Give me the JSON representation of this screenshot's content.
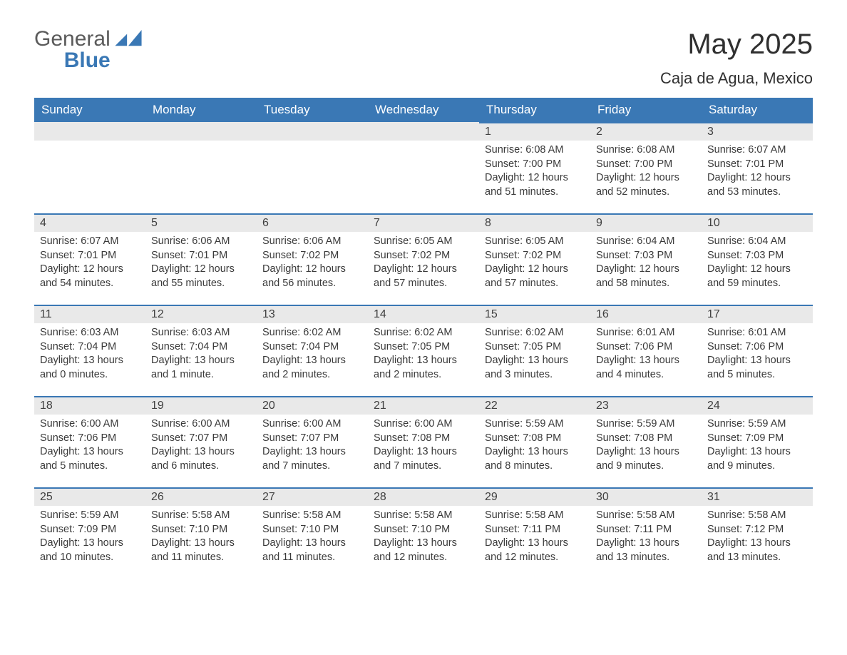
{
  "brand": {
    "name_part1": "General",
    "name_part2": "Blue",
    "text_color": "#5b5b5b",
    "accent_color": "#3a78b5"
  },
  "title": {
    "month_year": "May 2025",
    "location": "Caja de Agua, Mexico"
  },
  "colors": {
    "header_bg": "#3a78b5",
    "header_text": "#ffffff",
    "daybar_bg": "#e9e9e9",
    "daybar_border": "#3a78b5",
    "body_text": "#3a3a3a",
    "page_bg": "#ffffff"
  },
  "weekdays": [
    "Sunday",
    "Monday",
    "Tuesday",
    "Wednesday",
    "Thursday",
    "Friday",
    "Saturday"
  ],
  "weeks": [
    [
      {
        "day": "",
        "sunrise": "",
        "sunset": "",
        "daylight1": "",
        "daylight2": ""
      },
      {
        "day": "",
        "sunrise": "",
        "sunset": "",
        "daylight1": "",
        "daylight2": ""
      },
      {
        "day": "",
        "sunrise": "",
        "sunset": "",
        "daylight1": "",
        "daylight2": ""
      },
      {
        "day": "",
        "sunrise": "",
        "sunset": "",
        "daylight1": "",
        "daylight2": ""
      },
      {
        "day": "1",
        "sunrise": "Sunrise: 6:08 AM",
        "sunset": "Sunset: 7:00 PM",
        "daylight1": "Daylight: 12 hours",
        "daylight2": "and 51 minutes."
      },
      {
        "day": "2",
        "sunrise": "Sunrise: 6:08 AM",
        "sunset": "Sunset: 7:00 PM",
        "daylight1": "Daylight: 12 hours",
        "daylight2": "and 52 minutes."
      },
      {
        "day": "3",
        "sunrise": "Sunrise: 6:07 AM",
        "sunset": "Sunset: 7:01 PM",
        "daylight1": "Daylight: 12 hours",
        "daylight2": "and 53 minutes."
      }
    ],
    [
      {
        "day": "4",
        "sunrise": "Sunrise: 6:07 AM",
        "sunset": "Sunset: 7:01 PM",
        "daylight1": "Daylight: 12 hours",
        "daylight2": "and 54 minutes."
      },
      {
        "day": "5",
        "sunrise": "Sunrise: 6:06 AM",
        "sunset": "Sunset: 7:01 PM",
        "daylight1": "Daylight: 12 hours",
        "daylight2": "and 55 minutes."
      },
      {
        "day": "6",
        "sunrise": "Sunrise: 6:06 AM",
        "sunset": "Sunset: 7:02 PM",
        "daylight1": "Daylight: 12 hours",
        "daylight2": "and 56 minutes."
      },
      {
        "day": "7",
        "sunrise": "Sunrise: 6:05 AM",
        "sunset": "Sunset: 7:02 PM",
        "daylight1": "Daylight: 12 hours",
        "daylight2": "and 57 minutes."
      },
      {
        "day": "8",
        "sunrise": "Sunrise: 6:05 AM",
        "sunset": "Sunset: 7:02 PM",
        "daylight1": "Daylight: 12 hours",
        "daylight2": "and 57 minutes."
      },
      {
        "day": "9",
        "sunrise": "Sunrise: 6:04 AM",
        "sunset": "Sunset: 7:03 PM",
        "daylight1": "Daylight: 12 hours",
        "daylight2": "and 58 minutes."
      },
      {
        "day": "10",
        "sunrise": "Sunrise: 6:04 AM",
        "sunset": "Sunset: 7:03 PM",
        "daylight1": "Daylight: 12 hours",
        "daylight2": "and 59 minutes."
      }
    ],
    [
      {
        "day": "11",
        "sunrise": "Sunrise: 6:03 AM",
        "sunset": "Sunset: 7:04 PM",
        "daylight1": "Daylight: 13 hours",
        "daylight2": "and 0 minutes."
      },
      {
        "day": "12",
        "sunrise": "Sunrise: 6:03 AM",
        "sunset": "Sunset: 7:04 PM",
        "daylight1": "Daylight: 13 hours",
        "daylight2": "and 1 minute."
      },
      {
        "day": "13",
        "sunrise": "Sunrise: 6:02 AM",
        "sunset": "Sunset: 7:04 PM",
        "daylight1": "Daylight: 13 hours",
        "daylight2": "and 2 minutes."
      },
      {
        "day": "14",
        "sunrise": "Sunrise: 6:02 AM",
        "sunset": "Sunset: 7:05 PM",
        "daylight1": "Daylight: 13 hours",
        "daylight2": "and 2 minutes."
      },
      {
        "day": "15",
        "sunrise": "Sunrise: 6:02 AM",
        "sunset": "Sunset: 7:05 PM",
        "daylight1": "Daylight: 13 hours",
        "daylight2": "and 3 minutes."
      },
      {
        "day": "16",
        "sunrise": "Sunrise: 6:01 AM",
        "sunset": "Sunset: 7:06 PM",
        "daylight1": "Daylight: 13 hours",
        "daylight2": "and 4 minutes."
      },
      {
        "day": "17",
        "sunrise": "Sunrise: 6:01 AM",
        "sunset": "Sunset: 7:06 PM",
        "daylight1": "Daylight: 13 hours",
        "daylight2": "and 5 minutes."
      }
    ],
    [
      {
        "day": "18",
        "sunrise": "Sunrise: 6:00 AM",
        "sunset": "Sunset: 7:06 PM",
        "daylight1": "Daylight: 13 hours",
        "daylight2": "and 5 minutes."
      },
      {
        "day": "19",
        "sunrise": "Sunrise: 6:00 AM",
        "sunset": "Sunset: 7:07 PM",
        "daylight1": "Daylight: 13 hours",
        "daylight2": "and 6 minutes."
      },
      {
        "day": "20",
        "sunrise": "Sunrise: 6:00 AM",
        "sunset": "Sunset: 7:07 PM",
        "daylight1": "Daylight: 13 hours",
        "daylight2": "and 7 minutes."
      },
      {
        "day": "21",
        "sunrise": "Sunrise: 6:00 AM",
        "sunset": "Sunset: 7:08 PM",
        "daylight1": "Daylight: 13 hours",
        "daylight2": "and 7 minutes."
      },
      {
        "day": "22",
        "sunrise": "Sunrise: 5:59 AM",
        "sunset": "Sunset: 7:08 PM",
        "daylight1": "Daylight: 13 hours",
        "daylight2": "and 8 minutes."
      },
      {
        "day": "23",
        "sunrise": "Sunrise: 5:59 AM",
        "sunset": "Sunset: 7:08 PM",
        "daylight1": "Daylight: 13 hours",
        "daylight2": "and 9 minutes."
      },
      {
        "day": "24",
        "sunrise": "Sunrise: 5:59 AM",
        "sunset": "Sunset: 7:09 PM",
        "daylight1": "Daylight: 13 hours",
        "daylight2": "and 9 minutes."
      }
    ],
    [
      {
        "day": "25",
        "sunrise": "Sunrise: 5:59 AM",
        "sunset": "Sunset: 7:09 PM",
        "daylight1": "Daylight: 13 hours",
        "daylight2": "and 10 minutes."
      },
      {
        "day": "26",
        "sunrise": "Sunrise: 5:58 AM",
        "sunset": "Sunset: 7:10 PM",
        "daylight1": "Daylight: 13 hours",
        "daylight2": "and 11 minutes."
      },
      {
        "day": "27",
        "sunrise": "Sunrise: 5:58 AM",
        "sunset": "Sunset: 7:10 PM",
        "daylight1": "Daylight: 13 hours",
        "daylight2": "and 11 minutes."
      },
      {
        "day": "28",
        "sunrise": "Sunrise: 5:58 AM",
        "sunset": "Sunset: 7:10 PM",
        "daylight1": "Daylight: 13 hours",
        "daylight2": "and 12 minutes."
      },
      {
        "day": "29",
        "sunrise": "Sunrise: 5:58 AM",
        "sunset": "Sunset: 7:11 PM",
        "daylight1": "Daylight: 13 hours",
        "daylight2": "and 12 minutes."
      },
      {
        "day": "30",
        "sunrise": "Sunrise: 5:58 AM",
        "sunset": "Sunset: 7:11 PM",
        "daylight1": "Daylight: 13 hours",
        "daylight2": "and 13 minutes."
      },
      {
        "day": "31",
        "sunrise": "Sunrise: 5:58 AM",
        "sunset": "Sunset: 7:12 PM",
        "daylight1": "Daylight: 13 hours",
        "daylight2": "and 13 minutes."
      }
    ]
  ]
}
